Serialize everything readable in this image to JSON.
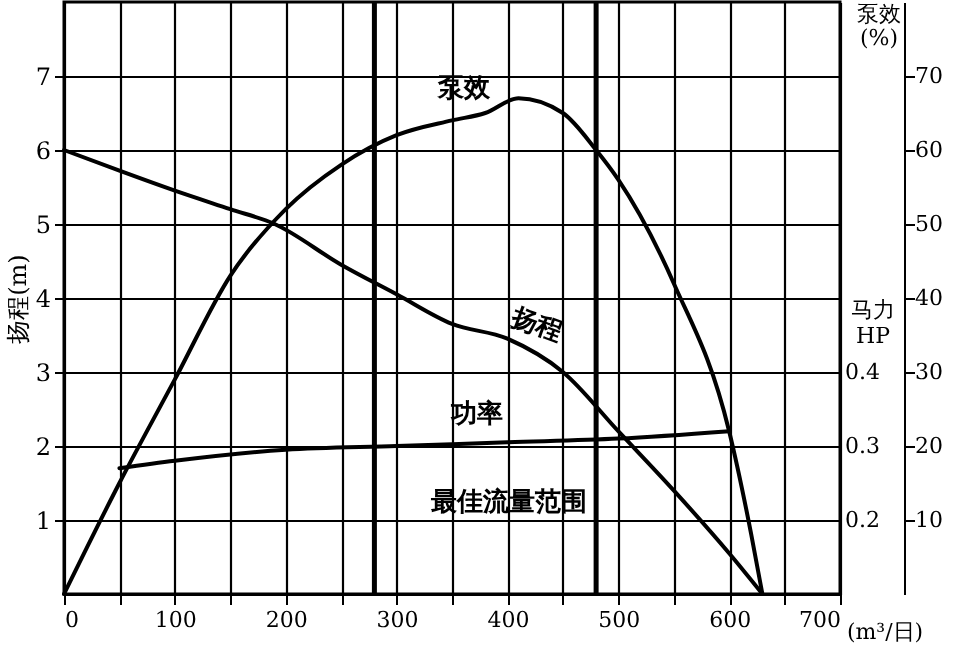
{
  "chart_data": {
    "type": "line",
    "ylabel": "扬程(m)",
    "y2label": "泵效\n(%)",
    "y3label": "马力\nHP",
    "xlabel": "(m³/日)",
    "xlim": [
      0,
      700
    ],
    "xticks": [
      0,
      {
        "value": 50,
        "label": null
      },
      100,
      {
        "value": 150,
        "label": null
      },
      200,
      {
        "value": 250,
        "label": null
      },
      300,
      {
        "value": 350,
        "label": null
      },
      400,
      {
        "value": 450,
        "label": null
      },
      500,
      {
        "value": 550,
        "label": null
      },
      600,
      {
        "value": 650,
        "label": null
      },
      700
    ],
    "ylim": [
      0,
      8
    ],
    "yticks": [
      1,
      2,
      3,
      4,
      5,
      6,
      7
    ],
    "y2lim": [
      0,
      80
    ],
    "y2ticks": [
      10,
      20,
      30,
      40,
      50,
      60,
      70
    ],
    "y3lim": [
      0.1,
      0.9
    ],
    "y3ticks": [
      0.2,
      0.3,
      0.4
    ],
    "grid": true,
    "marker": "none",
    "line_style": "solid",
    "series": [
      {
        "name": "泵效",
        "color": "#000000",
        "axis": "y2",
        "x": [
          0,
          50,
          100,
          150,
          200,
          250,
          300,
          350,
          380,
          410,
          450,
          480,
          500,
          550,
          600,
          620,
          630
        ],
        "values": [
          0,
          15,
          29,
          43,
          52,
          58,
          62,
          64,
          65,
          67,
          65,
          60,
          56,
          42,
          22,
          8,
          0
        ]
      },
      {
        "name": "扬程",
        "color": "#000000",
        "axis": "y",
        "x": [
          0,
          50,
          100,
          150,
          190,
          250,
          300,
          350,
          400,
          450,
          500,
          550,
          600,
          630
        ],
        "values": [
          6,
          5.72,
          5.45,
          5.2,
          5,
          4.45,
          4.05,
          3.65,
          3.45,
          3.0,
          2.2,
          1.4,
          0.55,
          0
        ]
      },
      {
        "name": "功率",
        "color": "#000000",
        "axis": "y3",
        "x": [
          50,
          100,
          200,
          300,
          400,
          500,
          600
        ],
        "values": [
          0.27,
          0.28,
          0.295,
          0.3,
          0.305,
          0.31,
          0.32
        ]
      }
    ],
    "ref_lines": [
      {
        "axis": "x",
        "value": 280,
        "color": "#000000"
      },
      {
        "axis": "x",
        "value": 480,
        "color": "#000000"
      }
    ],
    "annotations": [
      "最佳流量范围"
    ]
  }
}
